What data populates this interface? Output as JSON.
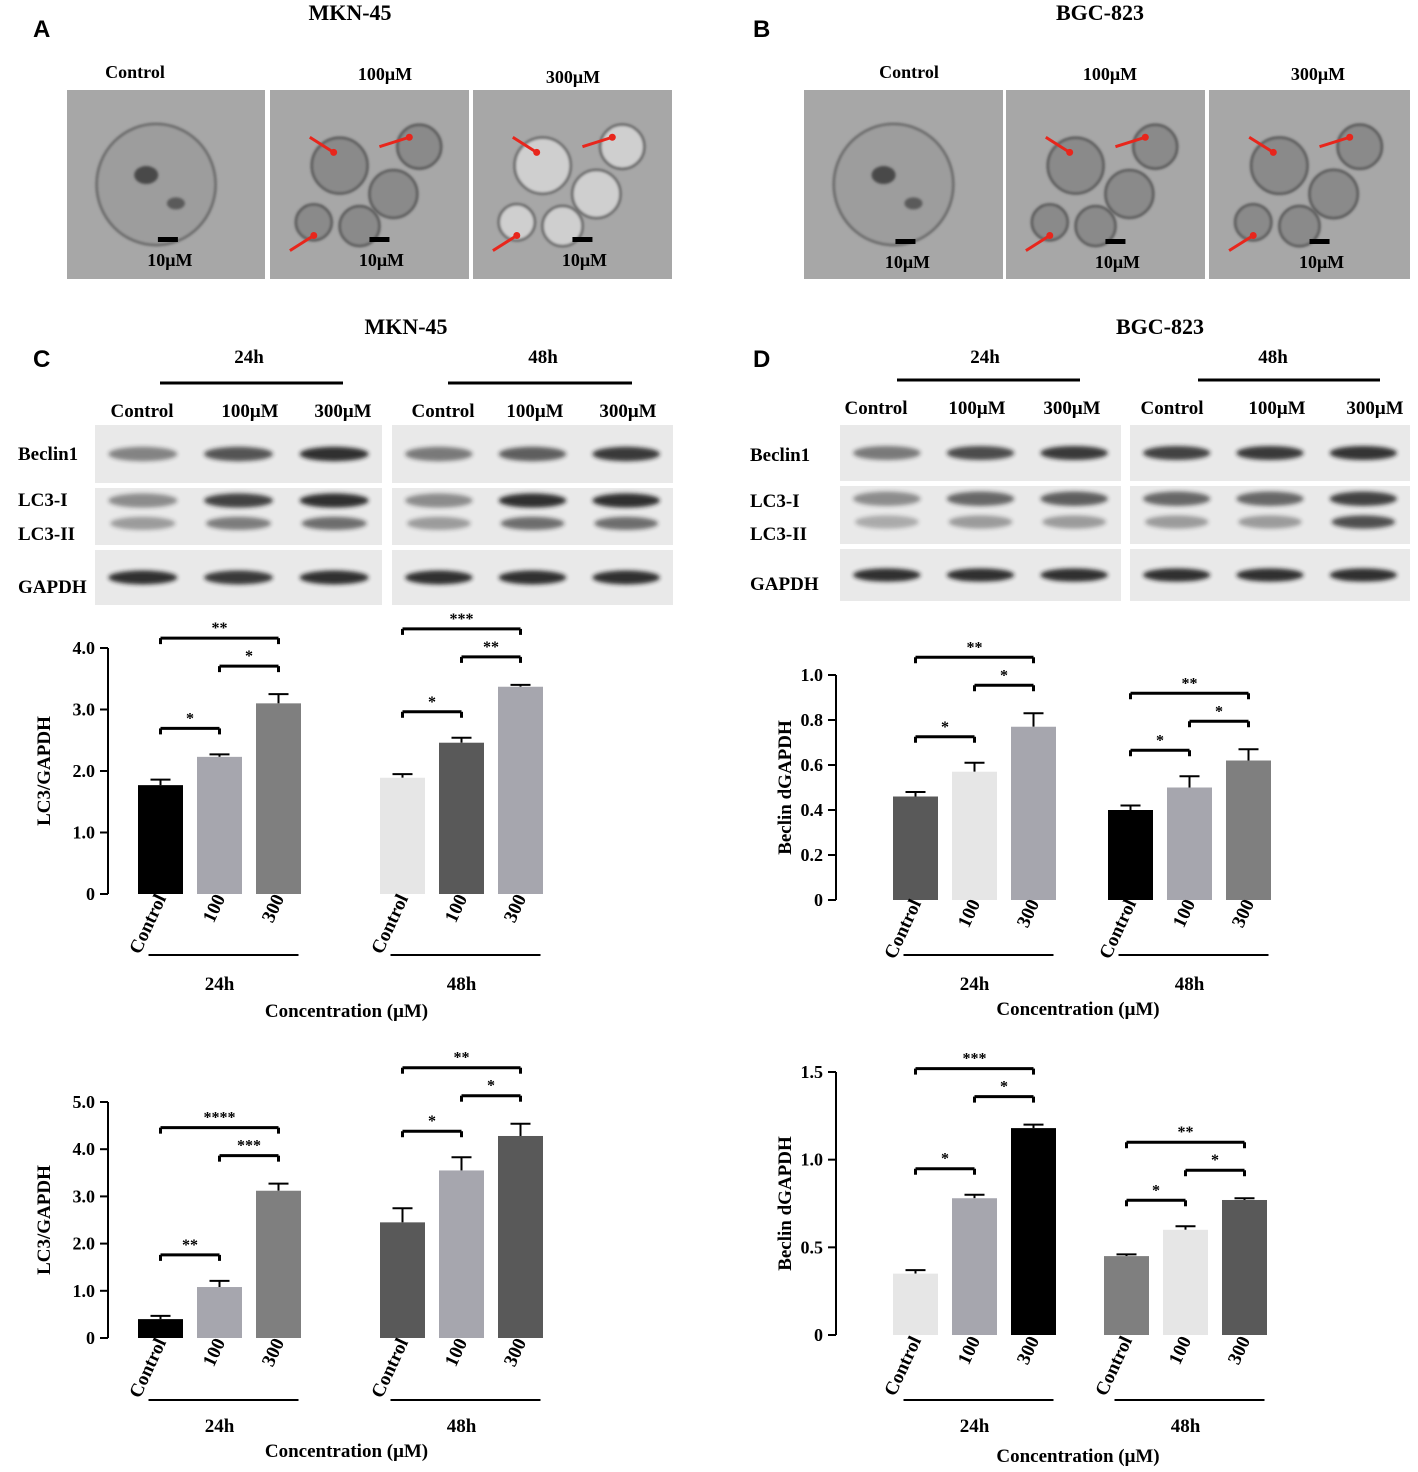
{
  "panels": {
    "A": {
      "letter": "A",
      "title": "MKN-45"
    },
    "B": {
      "letter": "B",
      "title": "BGC-823"
    },
    "C": {
      "letter": "C",
      "title": "MKN-45"
    },
    "D": {
      "letter": "D",
      "title": "BGC-823"
    }
  },
  "micrographs": {
    "labels": [
      "Control",
      "100μM",
      "300μM"
    ],
    "scale_label": "10μM"
  },
  "western": {
    "times": [
      "24h",
      "48h"
    ],
    "lane_labels": [
      "Control",
      "100μM",
      "300μM"
    ],
    "row_labels": [
      "Beclin1",
      "LC3-I",
      "LC3-II",
      "GAPDH"
    ]
  },
  "colors": {
    "black": "#000000",
    "dark_gray": "#595959",
    "mid_gray": "#7f7f7f",
    "light_gray": "#a6a6ae",
    "very_light_gray": "#e6e6e6",
    "arrow_red": "#e8261c",
    "em_background": "#a7a7a7"
  },
  "chart_data": [
    {
      "type": "bar",
      "ylabel": "LC3/GAPDH",
      "xlabel": "Concentration (μM)",
      "ylim": [
        0,
        4.0
      ],
      "yticks": [
        "0",
        "1.0",
        "2.0",
        "3.0",
        "4.0"
      ],
      "groups": [
        "24h",
        "48h"
      ],
      "categories": [
        "Control",
        "100",
        "300"
      ],
      "values": [
        [
          1.77,
          2.23,
          3.1
        ],
        [
          1.89,
          2.46,
          3.37
        ]
      ],
      "errors": [
        [
          0.09,
          0.04,
          0.15
        ],
        [
          0.06,
          0.08,
          0.03
        ]
      ],
      "colors": [
        [
          "#000000",
          "#a6a6ae",
          "#7f7f7f"
        ],
        [
          "#e6e6e6",
          "#595959",
          "#a6a6ae"
        ]
      ],
      "significance": [
        {
          "group": 0,
          "from": 0,
          "to": 1,
          "label": "*"
        },
        {
          "group": 0,
          "from": 1,
          "to": 2,
          "label": "*"
        },
        {
          "group": 0,
          "from": 0,
          "to": 2,
          "label": "**"
        },
        {
          "group": 1,
          "from": 0,
          "to": 1,
          "label": "*"
        },
        {
          "group": 1,
          "from": 1,
          "to": 2,
          "label": "**"
        },
        {
          "group": 1,
          "from": 0,
          "to": 2,
          "label": "***"
        }
      ]
    },
    {
      "type": "bar",
      "ylabel": "Beclin dGAPDH",
      "xlabel": "Concentration (μM)",
      "ylim": [
        0,
        1.0
      ],
      "yticks": [
        "0",
        "0.2",
        "0.4",
        "0.6",
        "0.8",
        "1.0"
      ],
      "groups": [
        "24h",
        "48h"
      ],
      "categories": [
        "Control",
        "100",
        "300"
      ],
      "values": [
        [
          0.46,
          0.57,
          0.77
        ],
        [
          0.4,
          0.5,
          0.62
        ]
      ],
      "errors": [
        [
          0.02,
          0.04,
          0.06
        ],
        [
          0.02,
          0.05,
          0.05
        ]
      ],
      "colors": [
        [
          "#595959",
          "#e6e6e6",
          "#a6a6ae"
        ],
        [
          "#000000",
          "#a6a6ae",
          "#7f7f7f"
        ]
      ],
      "significance": [
        {
          "group": 0,
          "from": 0,
          "to": 1,
          "label": "*"
        },
        {
          "group": 0,
          "from": 1,
          "to": 2,
          "label": "*"
        },
        {
          "group": 0,
          "from": 0,
          "to": 2,
          "label": "**"
        },
        {
          "group": 1,
          "from": 0,
          "to": 1,
          "label": "*"
        },
        {
          "group": 1,
          "from": 1,
          "to": 2,
          "label": "*"
        },
        {
          "group": 1,
          "from": 0,
          "to": 2,
          "label": "**"
        }
      ]
    },
    {
      "type": "bar",
      "ylabel": "LC3/GAPDH",
      "xlabel": "Concentration (μM)",
      "ylim": [
        0,
        5.0
      ],
      "yticks": [
        "0",
        "1.0",
        "2.0",
        "3.0",
        "4.0",
        "5.0"
      ],
      "groups": [
        "24h",
        "48h"
      ],
      "categories": [
        "Control",
        "100",
        "300"
      ],
      "values": [
        [
          0.4,
          1.08,
          3.12
        ],
        [
          2.45,
          3.55,
          4.28
        ]
      ],
      "errors": [
        [
          0.07,
          0.13,
          0.15
        ],
        [
          0.3,
          0.28,
          0.26
        ]
      ],
      "colors": [
        [
          "#000000",
          "#a6a6ae",
          "#7f7f7f"
        ],
        [
          "#595959",
          "#a6a6ae",
          "#595959"
        ]
      ],
      "significance": [
        {
          "group": 0,
          "from": 0,
          "to": 1,
          "label": "**"
        },
        {
          "group": 0,
          "from": 1,
          "to": 2,
          "label": "***"
        },
        {
          "group": 0,
          "from": 0,
          "to": 2,
          "label": "****"
        },
        {
          "group": 1,
          "from": 0,
          "to": 1,
          "label": "*"
        },
        {
          "group": 1,
          "from": 1,
          "to": 2,
          "label": "*"
        },
        {
          "group": 1,
          "from": 0,
          "to": 2,
          "label": "**"
        }
      ]
    },
    {
      "type": "bar",
      "ylabel": "Beclin dGAPDH",
      "xlabel": "Concentration (μM)",
      "ylim": [
        0,
        1.5
      ],
      "yticks": [
        "0",
        "0.5",
        "1.0",
        "1.5"
      ],
      "groups": [
        "24h",
        "48h"
      ],
      "categories": [
        "Control",
        "100",
        "300"
      ],
      "values": [
        [
          0.35,
          0.78,
          1.18
        ],
        [
          0.45,
          0.6,
          0.77
        ]
      ],
      "errors": [
        [
          0.02,
          0.02,
          0.02
        ],
        [
          0.01,
          0.02,
          0.01
        ]
      ],
      "colors": [
        [
          "#e6e6e6",
          "#a6a6ae",
          "#000000"
        ],
        [
          "#7f7f7f",
          "#e6e6e6",
          "#595959"
        ]
      ],
      "significance": [
        {
          "group": 0,
          "from": 0,
          "to": 1,
          "label": "*"
        },
        {
          "group": 0,
          "from": 1,
          "to": 2,
          "label": "*"
        },
        {
          "group": 0,
          "from": 0,
          "to": 2,
          "label": "***"
        },
        {
          "group": 1,
          "from": 0,
          "to": 1,
          "label": "*"
        },
        {
          "group": 1,
          "from": 1,
          "to": 2,
          "label": "*"
        },
        {
          "group": 1,
          "from": 0,
          "to": 2,
          "label": "**"
        }
      ]
    }
  ]
}
